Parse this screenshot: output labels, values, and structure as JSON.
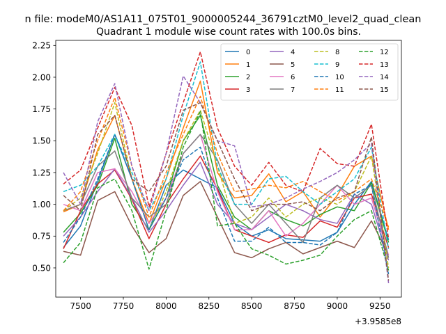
{
  "figure": {
    "suptitle": "n file: modeM0/AS1A11_075T01_9000005244_36791cztM0_level2_quad_clean",
    "offset_label": "+3.9585e8"
  },
  "chart_data": {
    "type": "line",
    "title": "Quadrant 1 module wise count rates with 100.0s bins.",
    "xlabel": "",
    "ylabel": "",
    "x_offset": 395850000,
    "xlim": [
      7355,
      9375
    ],
    "ylim": [
      0.27,
      2.29
    ],
    "xticks": [
      7500,
      7750,
      8000,
      8250,
      8500,
      8750,
      9000,
      9250
    ],
    "xtick_labels": [
      "7500",
      "7750",
      "8000",
      "8250",
      "8500",
      "8750",
      "9000",
      "9250"
    ],
    "yticks": [
      0.5,
      0.75,
      1.0,
      1.25,
      1.5,
      1.75,
      2.0,
      2.25
    ],
    "ytick_labels": [
      "0.50",
      "0.75",
      "1.00",
      "1.25",
      "1.50",
      "1.75",
      "2.00",
      "2.25"
    ],
    "grid": false,
    "legend_position": "top-right",
    "legend_columns": 4,
    "x": [
      7400,
      7500,
      7600,
      7700,
      7800,
      7900,
      8000,
      8100,
      8200,
      8300,
      8400,
      8500,
      8600,
      8700,
      8800,
      8900,
      9000,
      9100,
      9200,
      9300
    ],
    "series": [
      {
        "name": "0",
        "color": "#1f77b4",
        "dash": "solid",
        "values": [
          0.66,
          0.83,
          1.18,
          1.55,
          1.2,
          0.8,
          1.15,
          1.27,
          1.2,
          1.13,
          0.85,
          0.75,
          0.8,
          0.73,
          0.72,
          0.71,
          0.78,
          1.0,
          1.18,
          0.72
        ]
      },
      {
        "name": "1",
        "color": "#ff7f0e",
        "dash": "solid",
        "values": [
          0.94,
          1.0,
          1.43,
          1.7,
          1.2,
          0.85,
          1.2,
          1.6,
          1.97,
          1.25,
          1.05,
          1.07,
          1.24,
          1.02,
          1.1,
          0.9,
          1.07,
          1.3,
          1.38,
          0.8
        ]
      },
      {
        "name": "2",
        "color": "#2ca02c",
        "dash": "solid",
        "values": [
          0.78,
          0.93,
          1.15,
          1.52,
          1.0,
          0.8,
          1.05,
          1.5,
          1.7,
          1.15,
          0.9,
          0.8,
          0.95,
          0.88,
          0.83,
          0.92,
          0.98,
          0.95,
          1.17,
          0.7
        ]
      },
      {
        "name": "3",
        "color": "#d62728",
        "dash": "solid",
        "values": [
          0.65,
          0.95,
          1.16,
          1.27,
          1.04,
          0.73,
          1.0,
          1.2,
          1.38,
          1.12,
          0.8,
          0.75,
          0.7,
          0.76,
          0.74,
          0.87,
          0.82,
          1.05,
          1.08,
          0.66
        ]
      },
      {
        "name": "4",
        "color": "#9467bd",
        "dash": "solid",
        "values": [
          0.75,
          0.9,
          1.1,
          1.28,
          1.05,
          0.78,
          0.95,
          1.15,
          1.33,
          1.0,
          0.85,
          0.8,
          0.9,
          1.0,
          0.95,
          0.88,
          0.85,
          1.08,
          1.0,
          0.56
        ]
      },
      {
        "name": "5",
        "color": "#8c564b",
        "dash": "solid",
        "values": [
          0.63,
          0.6,
          1.03,
          1.1,
          0.83,
          0.62,
          0.73,
          1.07,
          1.18,
          0.9,
          0.62,
          0.58,
          0.65,
          0.7,
          0.61,
          0.66,
          0.71,
          0.66,
          0.87,
          0.6
        ]
      },
      {
        "name": "6",
        "color": "#e377c2",
        "dash": "solid",
        "values": [
          1.0,
          0.95,
          1.25,
          1.28,
          1.1,
          0.85,
          1.05,
          1.4,
          1.55,
          1.1,
          0.8,
          0.8,
          0.95,
          0.75,
          0.85,
          1.0,
          1.15,
          1.0,
          1.05,
          0.6
        ]
      },
      {
        "name": "7",
        "color": "#7f7f7f",
        "dash": "solid",
        "values": [
          0.95,
          1.0,
          1.3,
          1.42,
          1.05,
          0.9,
          1.0,
          1.4,
          1.55,
          1.35,
          1.0,
          0.85,
          1.0,
          0.85,
          0.7,
          1.05,
          1.15,
          1.05,
          1.15,
          0.58
        ]
      },
      {
        "name": "8",
        "color": "#bcbd22",
        "dash": "dashed",
        "values": [
          0.95,
          1.05,
          1.4,
          1.8,
          1.2,
          0.8,
          1.1,
          1.5,
          1.74,
          1.3,
          0.85,
          0.9,
          1.05,
          0.9,
          1.0,
          1.05,
          1.0,
          1.1,
          1.38,
          0.5
        ]
      },
      {
        "name": "9",
        "color": "#17becf",
        "dash": "dashed",
        "values": [
          1.1,
          1.15,
          1.3,
          1.55,
          1.25,
          0.95,
          1.2,
          1.7,
          2.12,
          1.3,
          1.0,
          1.0,
          1.2,
          1.22,
          1.1,
          1.0,
          1.1,
          1.2,
          1.45,
          0.65
        ]
      },
      {
        "name": "10",
        "color": "#1f77b4",
        "dash": "dashed",
        "values": [
          0.7,
          0.9,
          1.2,
          1.55,
          1.2,
          0.8,
          1.05,
          1.35,
          1.45,
          1.05,
          0.71,
          0.71,
          0.82,
          0.7,
          0.7,
          0.68,
          0.78,
          1.08,
          1.15,
          0.45
        ]
      },
      {
        "name": "11",
        "color": "#ff7f0e",
        "dash": "dashed",
        "values": [
          0.95,
          1.1,
          1.5,
          1.84,
          1.3,
          0.9,
          1.25,
          1.55,
          1.85,
          1.4,
          1.1,
          1.12,
          1.15,
          1.13,
          1.18,
          1.1,
          1.03,
          1.1,
          1.2,
          0.82
        ]
      },
      {
        "name": "12",
        "color": "#2ca02c",
        "dash": "dashed",
        "values": [
          0.54,
          0.7,
          1.13,
          1.2,
          0.95,
          0.49,
          0.95,
          1.45,
          1.73,
          0.83,
          0.85,
          0.65,
          0.6,
          0.53,
          0.56,
          0.6,
          0.75,
          0.88,
          0.95,
          0.48
        ]
      },
      {
        "name": "13",
        "color": "#d62728",
        "dash": "dashed",
        "values": [
          1.16,
          1.27,
          1.6,
          1.92,
          1.62,
          0.98,
          1.4,
          1.8,
          2.2,
          1.6,
          1.3,
          1.15,
          1.33,
          1.15,
          1.1,
          1.44,
          1.32,
          1.3,
          1.63,
          0.73
        ]
      },
      {
        "name": "14",
        "color": "#9467bd",
        "dash": "dashed",
        "values": [
          1.25,
          1.0,
          1.65,
          1.95,
          1.3,
          0.95,
          1.4,
          2.01,
          1.8,
          1.5,
          1.46,
          0.98,
          1.0,
          1.05,
          1.12,
          1.18,
          1.25,
          1.35,
          1.48,
          0.38
        ]
      },
      {
        "name": "15",
        "color": "#8c564b",
        "dash": "dashed",
        "values": [
          1.07,
          0.95,
          1.55,
          1.7,
          1.2,
          1.1,
          1.3,
          1.74,
          1.8,
          1.5,
          1.2,
          0.95,
          1.0,
          1.0,
          1.02,
          0.95,
          1.05,
          1.1,
          1.53,
          0.4
        ]
      }
    ]
  }
}
